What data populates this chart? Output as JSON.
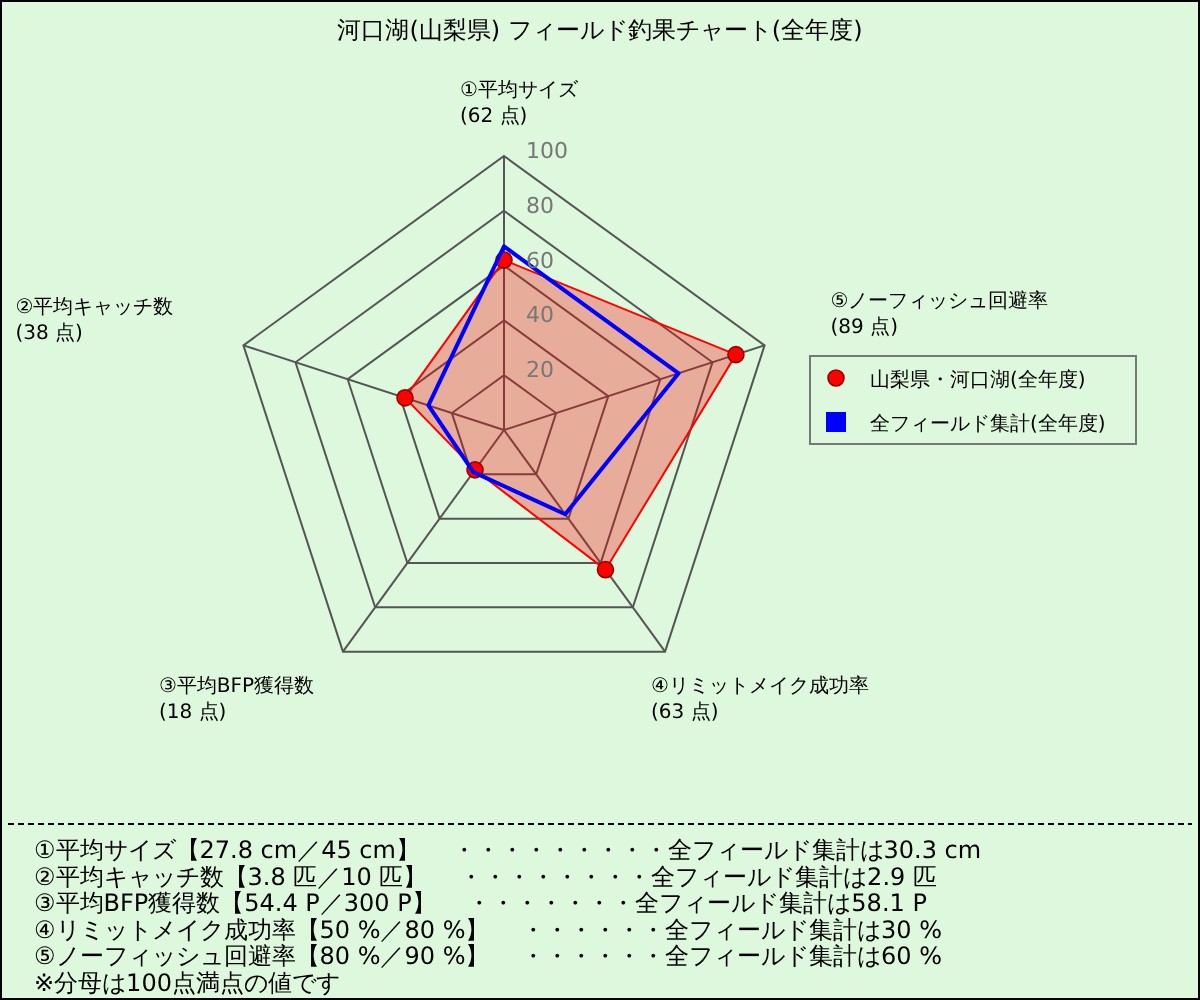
{
  "chart_data": {
    "type": "radar",
    "title": "河口湖(山梨県) フィールド釣果チャート(全年度)",
    "categories": [
      "①平均サイズ\n(62 点)",
      "⑤ノーフィッシュ回避率\n(89 点)",
      "④リミットメイク成功率\n(63 点)",
      "③平均BFP獲得数\n(18 点)",
      "②平均キャッチ数\n(38 点)"
    ],
    "series": [
      {
        "name": "山梨県・河口湖(全年度)",
        "color": "#ff0000",
        "marker": "circle",
        "values": [
          62,
          89,
          63,
          18,
          38
        ]
      },
      {
        "name": "全フィールド集計(全年度)",
        "color": "#0000ff",
        "marker": "none",
        "values": [
          67,
          67,
          38,
          19,
          29
        ]
      }
    ],
    "ylim": [
      0,
      100
    ],
    "yticks": [
      20,
      40,
      60,
      80,
      100
    ],
    "grid": true,
    "legend": "right",
    "annotations": [
      "①平均サイズ【27.8 cm／45 cm】　 ・・・・・・・・・全フィールド集計は30.3 cm",
      "②平均キャッチ数【3.8 匹／10 匹】　 ・・・・・・・・全フィールド集計は2.9 匹",
      "③平均BFP獲得数【54.4 P／300 P】　 ・・・・・・・全フィールド集計は58.1 P",
      "④リミットメイク成功率【50 %／80 %】　 ・・・・・・全フィールド集計は30 %",
      "⑤ノーフィッシュ回避率【80 %／90 %】　 ・・・・・・全フィールド集計は60 %",
      "※分母は100点満点の値です"
    ]
  }
}
